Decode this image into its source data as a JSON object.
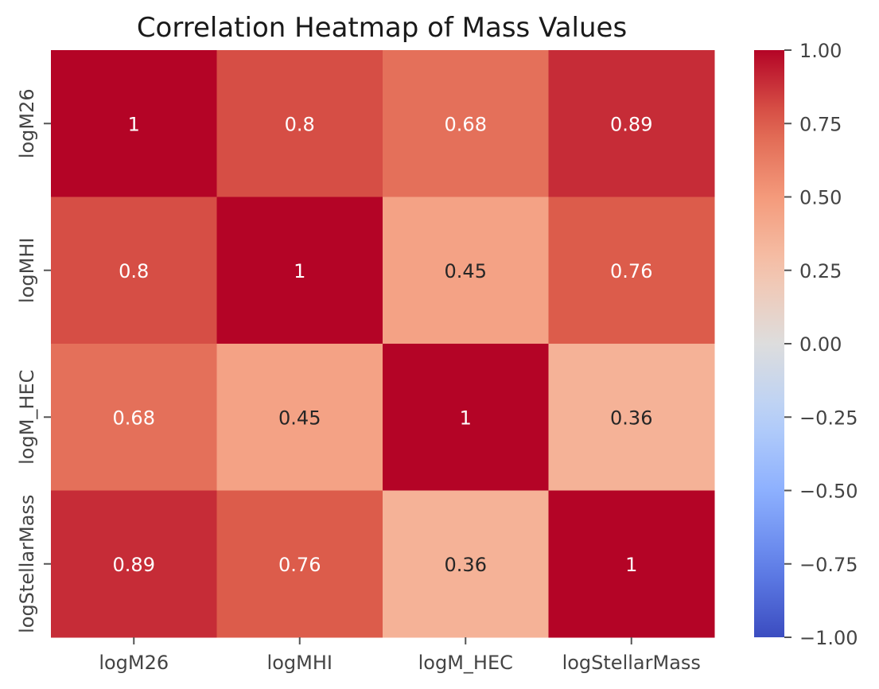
{
  "chart_data": {
    "type": "heatmap",
    "title": "Correlation Heatmap of Mass Values",
    "x_categories": [
      "logM26",
      "logMHI",
      "logM_HEC",
      "logStellarMass"
    ],
    "y_categories": [
      "logM26",
      "logMHI",
      "logM_HEC",
      "logStellarMass"
    ],
    "values": [
      [
        1.0,
        0.8,
        0.68,
        0.89
      ],
      [
        0.8,
        1.0,
        0.45,
        0.76
      ],
      [
        0.68,
        0.45,
        1.0,
        0.36
      ],
      [
        0.89,
        0.76,
        0.36,
        1.0
      ]
    ],
    "annotations": [
      [
        "1",
        "0.8",
        "0.68",
        "0.89"
      ],
      [
        "0.8",
        "1",
        "0.45",
        "0.76"
      ],
      [
        "0.68",
        "0.45",
        "1",
        "0.36"
      ],
      [
        "0.89",
        "0.76",
        "0.36",
        "1"
      ]
    ],
    "colormap": "coolwarm",
    "vmin": -1.0,
    "vmax": 1.0,
    "colorbar": {
      "ticks": [
        1.0,
        0.75,
        0.5,
        0.25,
        0.0,
        -0.25,
        -0.5,
        -0.75,
        -1.0
      ],
      "tick_labels": [
        "1.00",
        "0.75",
        "0.50",
        "0.25",
        "0.00",
        "−0.25",
        "−0.50",
        "−0.75",
        "−1.00"
      ]
    },
    "xlabel": "",
    "ylabel": "",
    "grid": false
  }
}
